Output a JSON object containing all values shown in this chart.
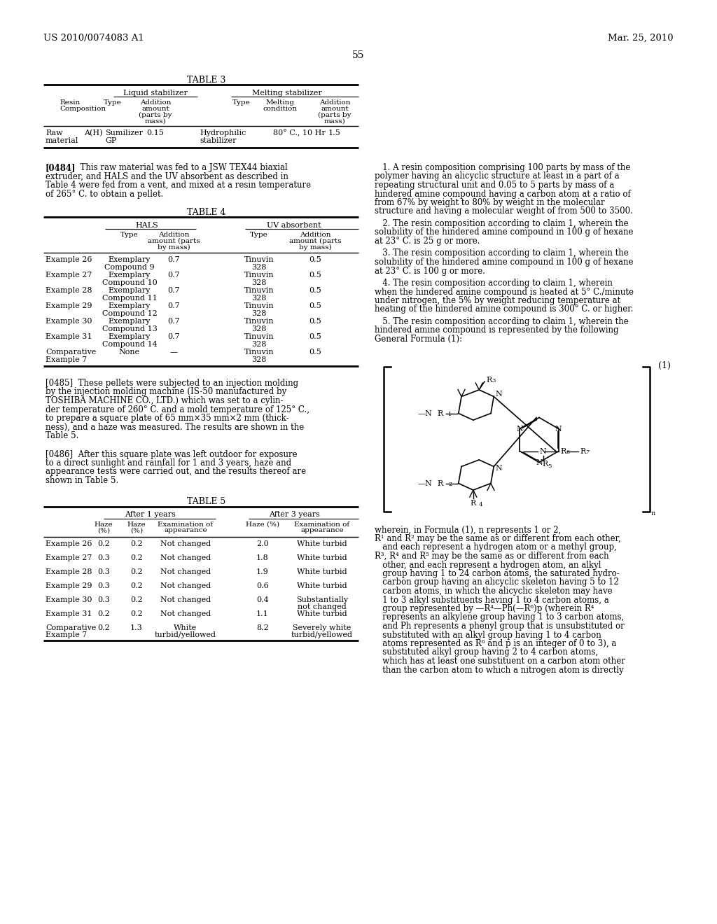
{
  "background_color": "#ffffff",
  "header_left": "US 2010/0074083 A1",
  "header_right": "Mar. 25, 2010",
  "page_number": "55"
}
